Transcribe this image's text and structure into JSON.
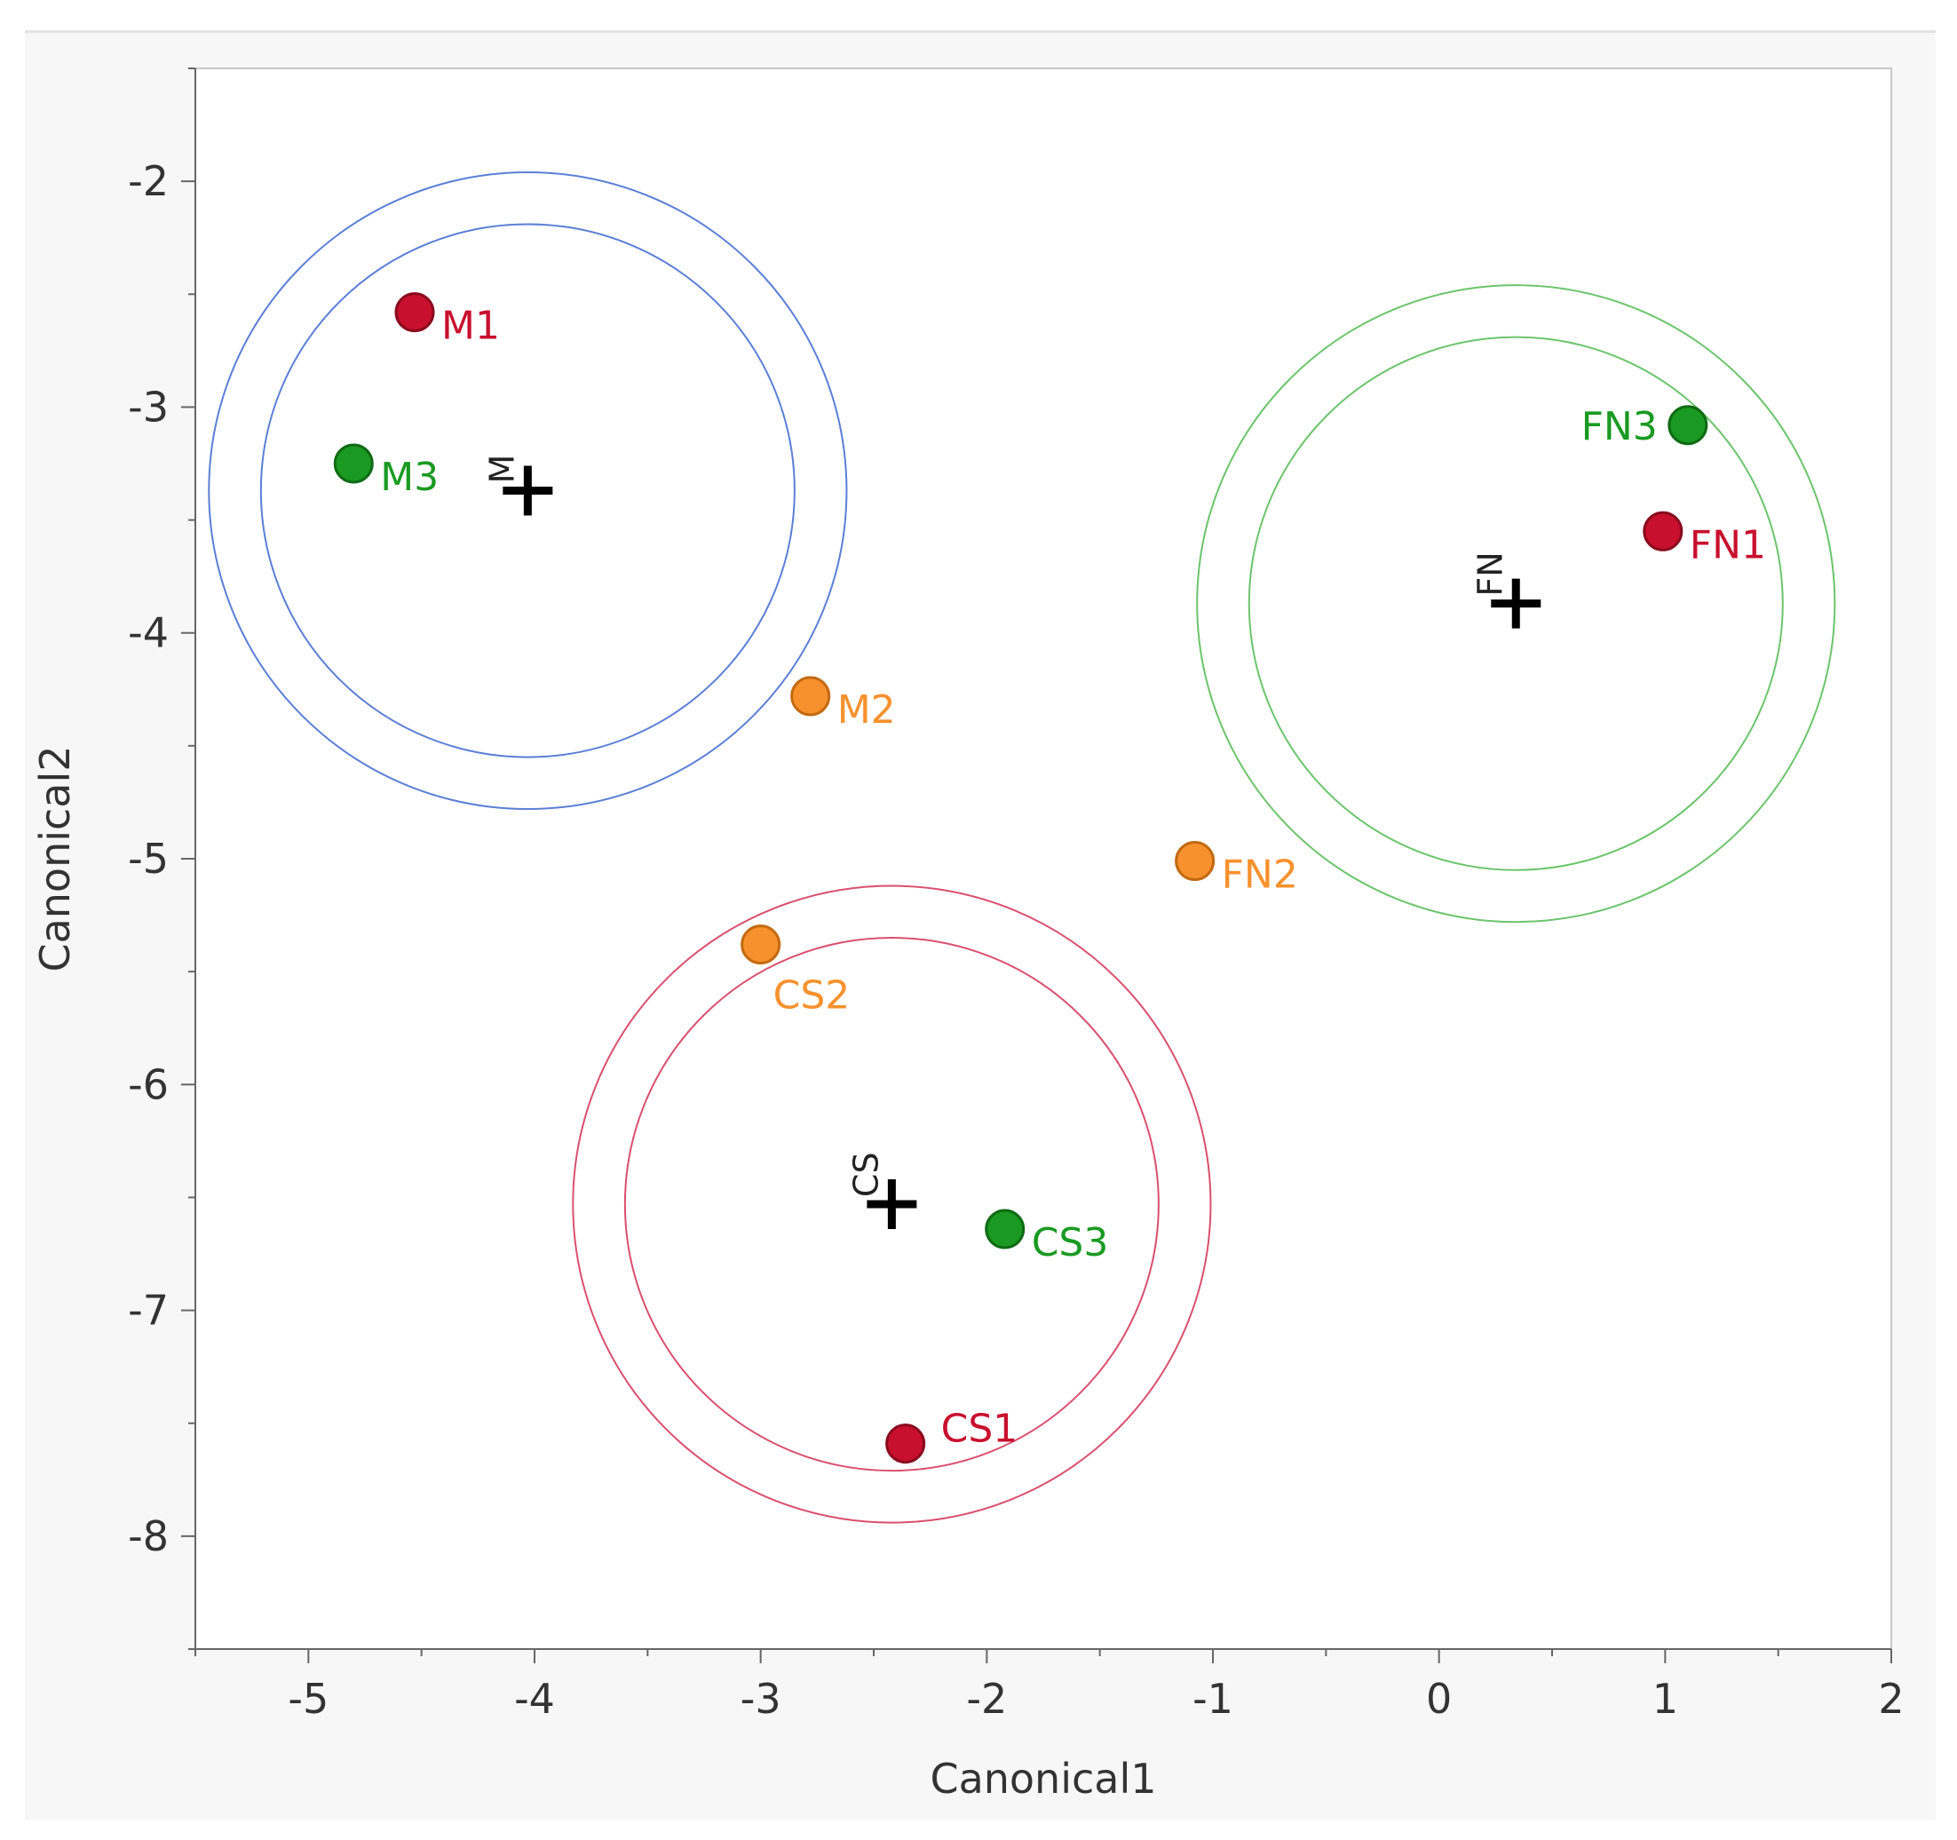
{
  "chart_data": {
    "type": "scatter",
    "title": "",
    "xlabel": "Canonical1",
    "ylabel": "Canonical2",
    "xlim": [
      -5.5,
      2
    ],
    "ylim": [
      -8.5,
      -1.5
    ],
    "xticks": [
      -5,
      -4,
      -3,
      -2,
      -1,
      0,
      1,
      2
    ],
    "yticks": [
      -2,
      -3,
      -4,
      -5,
      -6,
      -7,
      -8
    ],
    "xtick_labels": [
      "-5",
      "-4",
      "-3",
      "-2",
      "-1",
      "0",
      "1",
      "2"
    ],
    "ytick_labels": [
      "-2",
      "-3",
      "-4",
      "-5",
      "-6",
      "-7",
      "-8"
    ],
    "grid": false,
    "colors": {
      "red": "#c8102e",
      "green": "#1a9a22",
      "orange": "#f7912d",
      "blue_circle": "#5b7fd6",
      "green_circle": "#6cc46c",
      "red_circle": "#d9506e",
      "centroid": "#000000"
    },
    "points": [
      {
        "label": "M1",
        "x": -4.53,
        "y": -2.58,
        "color": "red",
        "label_side": "right"
      },
      {
        "label": "M3",
        "x": -4.8,
        "y": -3.25,
        "color": "green",
        "label_side": "right"
      },
      {
        "label": "M2",
        "x": -2.78,
        "y": -4.28,
        "color": "orange",
        "label_side": "right"
      },
      {
        "label": "FN3",
        "x": 1.1,
        "y": -3.08,
        "color": "green",
        "label_side": "left"
      },
      {
        "label": "FN1",
        "x": 0.99,
        "y": -3.55,
        "color": "red",
        "label_side": "right"
      },
      {
        "label": "FN2",
        "x": -1.08,
        "y": -5.01,
        "color": "orange",
        "label_side": "right"
      },
      {
        "label": "CS2",
        "x": -3.0,
        "y": -5.38,
        "color": "orange",
        "label_side": "below"
      },
      {
        "label": "CS3",
        "x": -1.92,
        "y": -6.64,
        "color": "green",
        "label_side": "right"
      },
      {
        "label": "CS1",
        "x": -2.36,
        "y": -7.59,
        "color": "red",
        "label_side": "above-right"
      }
    ],
    "groups": [
      {
        "name": "M",
        "x": -4.03,
        "y": -3.37,
        "r_inner": 1.18,
        "r_outer": 1.41,
        "circle_color": "blue_circle"
      },
      {
        "name": "FN",
        "x": 0.34,
        "y": -3.87,
        "r_inner": 1.18,
        "r_outer": 1.41,
        "circle_color": "green_circle"
      },
      {
        "name": "CS",
        "x": -2.42,
        "y": -6.53,
        "r_inner": 1.18,
        "r_outer": 1.41,
        "circle_color": "red_circle"
      }
    ]
  }
}
